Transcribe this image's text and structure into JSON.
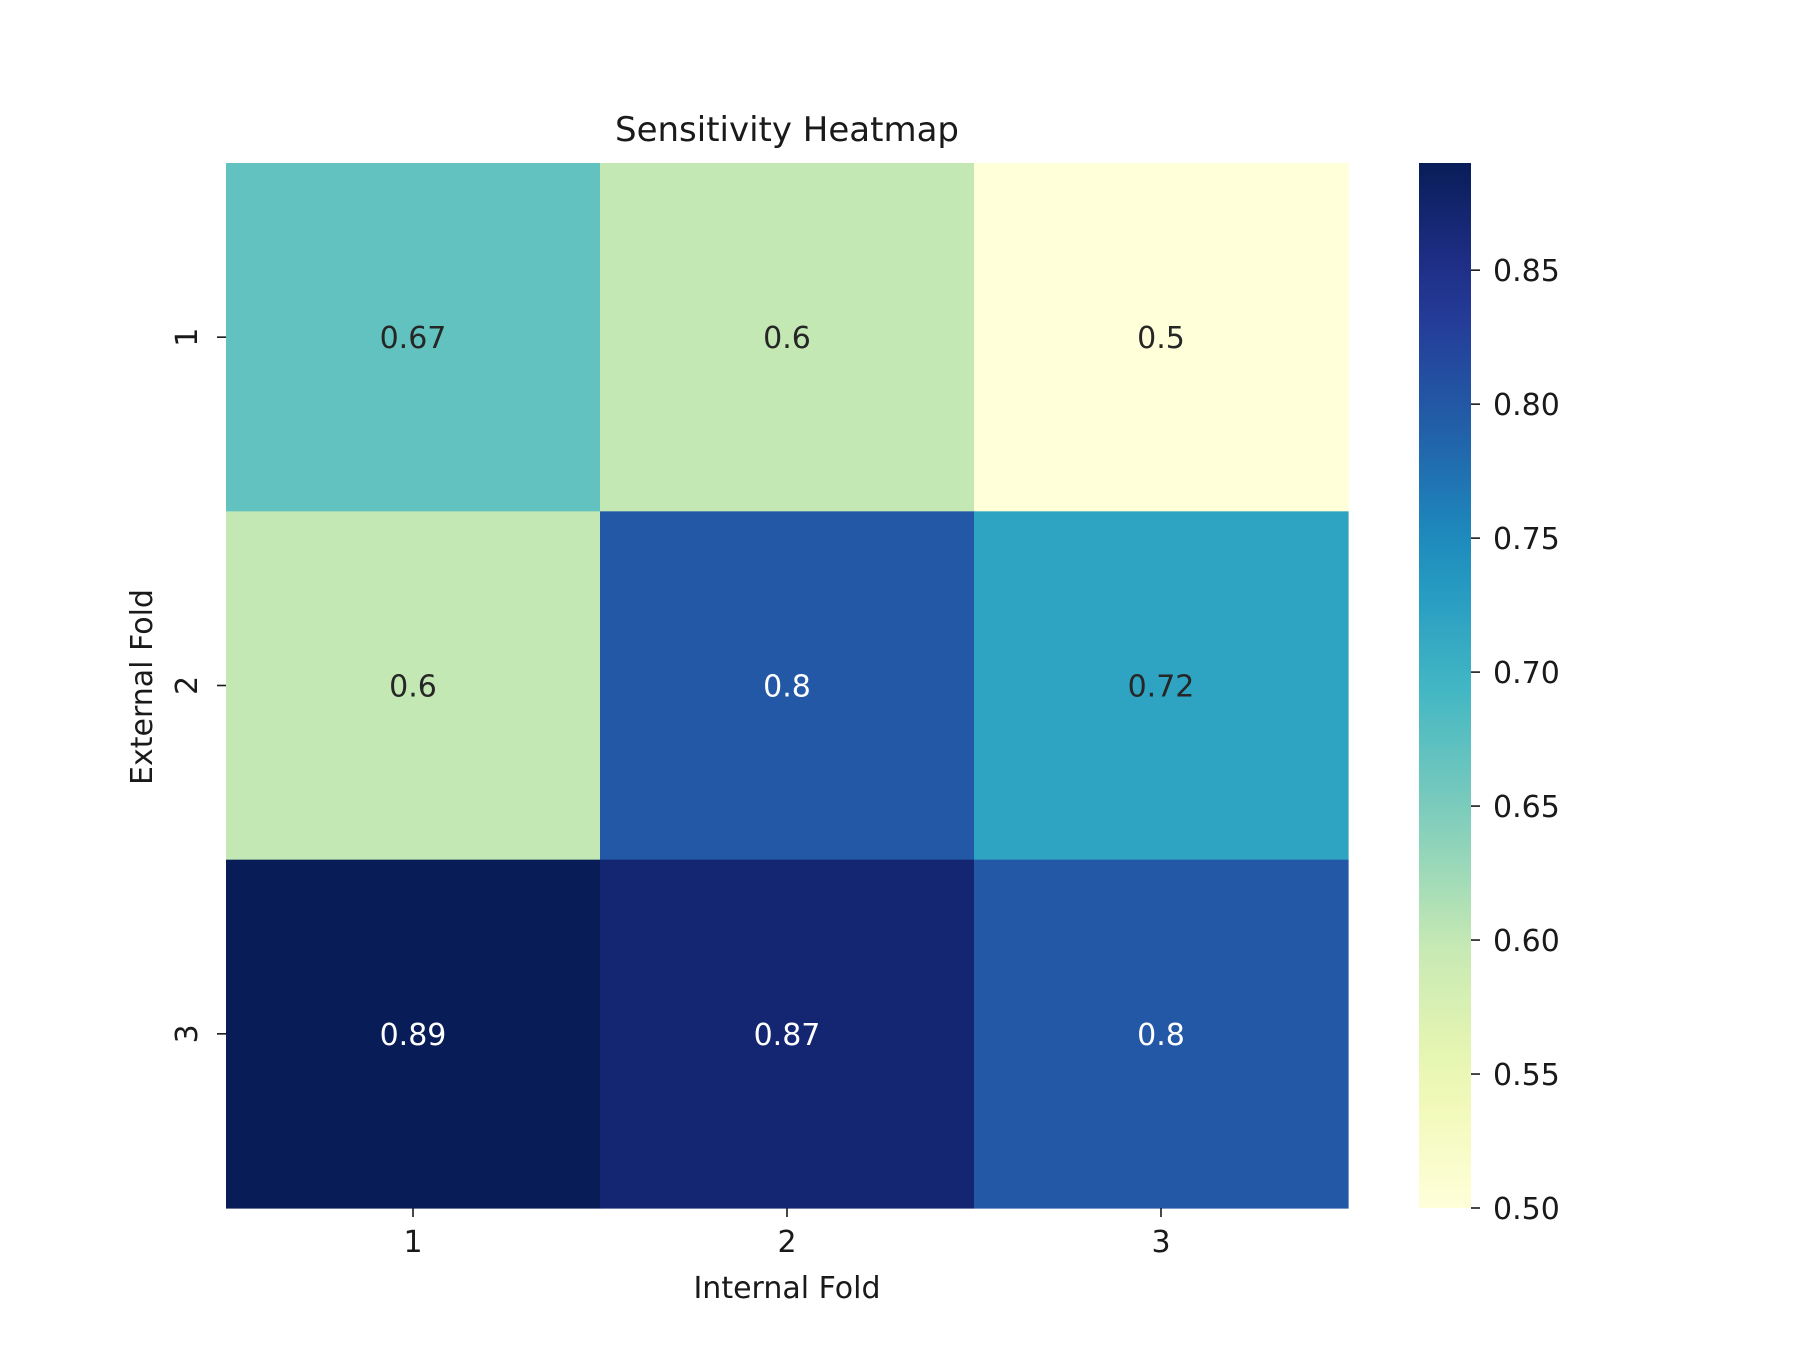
{
  "chart_data": {
    "type": "heatmap",
    "title": "Sensitivity Heatmap",
    "xlabel": "Internal Fold",
    "ylabel": "External Fold",
    "x_categories": [
      "1",
      "2",
      "3"
    ],
    "y_categories": [
      "1",
      "2",
      "3"
    ],
    "values": [
      [
        0.67,
        0.6,
        0.5
      ],
      [
        0.6,
        0.8,
        0.72
      ],
      [
        0.89,
        0.87,
        0.8
      ]
    ],
    "value_labels": [
      [
        "0.67",
        "0.6",
        "0.5"
      ],
      [
        "0.6",
        "0.8",
        "0.72"
      ],
      [
        "0.89",
        "0.87",
        "0.8"
      ]
    ],
    "colormap": "YlGnBu",
    "color_range": [
      0.5,
      0.89
    ],
    "colorbar_ticks": [
      0.5,
      0.55,
      0.6,
      0.65,
      0.7,
      0.75,
      0.8,
      0.85
    ],
    "colorbar_tick_labels": [
      "0.50",
      "0.55",
      "0.60",
      "0.65",
      "0.70",
      "0.75",
      "0.80",
      "0.85"
    ],
    "colorbar_position": "right"
  }
}
